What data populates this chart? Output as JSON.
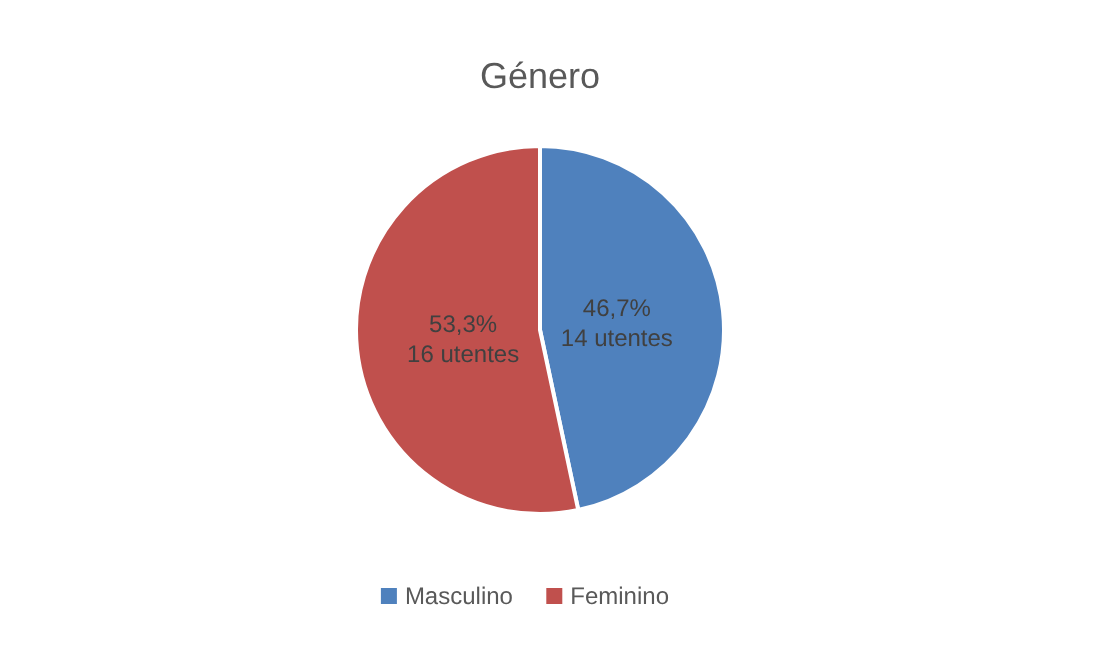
{
  "chart_data": {
    "type": "pie",
    "title": "Género",
    "categories": [
      "Masculino",
      "Feminino"
    ],
    "values": [
      14,
      16
    ],
    "colors": [
      "#4f81bd",
      "#c0504d"
    ],
    "value_labels": [
      "46,7%\n14 utentes",
      "53,3%\n16 utentes"
    ],
    "legend": "bottom"
  }
}
